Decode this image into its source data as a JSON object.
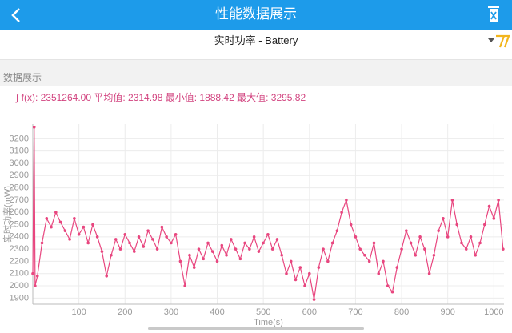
{
  "header": {
    "title": "性能数据展示"
  },
  "selector": {
    "label": "实时功率 - Battery"
  },
  "section": {
    "label": "数据展示"
  },
  "summary": "∫ f(x): 2351264.00 平均值: 2314.98 最小值: 1888.42 最大值: 3295.82",
  "chart_data": {
    "type": "line",
    "x_label": "Time(s)",
    "y_label": "实时功率(mW)",
    "color": "#e8467f",
    "grid": true,
    "xlim": [
      0,
      1022
    ],
    "ylim": [
      1850,
      3320
    ],
    "xticks": [
      100,
      200,
      300,
      400,
      500,
      600,
      700,
      800,
      900,
      1000
    ],
    "yticks": [
      1900,
      2000,
      2100,
      2200,
      2300,
      2400,
      2500,
      2600,
      2700,
      2800,
      2900,
      3000,
      3100,
      3200
    ],
    "x": [
      0,
      3,
      5,
      10,
      20,
      30,
      40,
      50,
      60,
      70,
      80,
      90,
      100,
      110,
      120,
      130,
      140,
      150,
      160,
      170,
      180,
      190,
      200,
      210,
      220,
      230,
      240,
      250,
      260,
      270,
      280,
      290,
      300,
      310,
      320,
      330,
      340,
      350,
      360,
      370,
      380,
      390,
      400,
      410,
      420,
      430,
      440,
      450,
      460,
      470,
      480,
      490,
      500,
      510,
      520,
      530,
      540,
      550,
      560,
      570,
      580,
      590,
      600,
      610,
      620,
      630,
      640,
      650,
      660,
      670,
      680,
      690,
      700,
      710,
      720,
      730,
      740,
      750,
      760,
      770,
      780,
      790,
      800,
      810,
      820,
      830,
      840,
      850,
      860,
      870,
      880,
      890,
      900,
      910,
      920,
      930,
      940,
      950,
      960,
      970,
      980,
      990,
      1000,
      1010,
      1020
    ],
    "values": [
      2100,
      3295.82,
      2000,
      2080,
      2350,
      2550,
      2480,
      2600,
      2520,
      2450,
      2380,
      2550,
      2420,
      2480,
      2350,
      2500,
      2400,
      2280,
      2080,
      2250,
      2380,
      2300,
      2420,
      2350,
      2280,
      2400,
      2320,
      2450,
      2380,
      2300,
      2480,
      2400,
      2350,
      2420,
      2200,
      2000,
      2250,
      2150,
      2300,
      2220,
      2350,
      2280,
      2200,
      2330,
      2250,
      2380,
      2300,
      2220,
      2350,
      2300,
      2400,
      2280,
      2350,
      2420,
      2300,
      2380,
      2250,
      2100,
      2200,
      2050,
      2150,
      2000,
      2100,
      1888.42,
      2150,
      2300,
      2200,
      2350,
      2450,
      2600,
      2700,
      2500,
      2400,
      2300,
      2250,
      2200,
      2350,
      2100,
      2200,
      2000,
      1950,
      2150,
      2300,
      2450,
      2350,
      2250,
      2400,
      2300,
      2100,
      2250,
      2450,
      2550,
      2400,
      2700,
      2500,
      2350,
      2300,
      2400,
      2250,
      2350,
      2500,
      2650,
      2550,
      2700,
      2300
    ]
  }
}
